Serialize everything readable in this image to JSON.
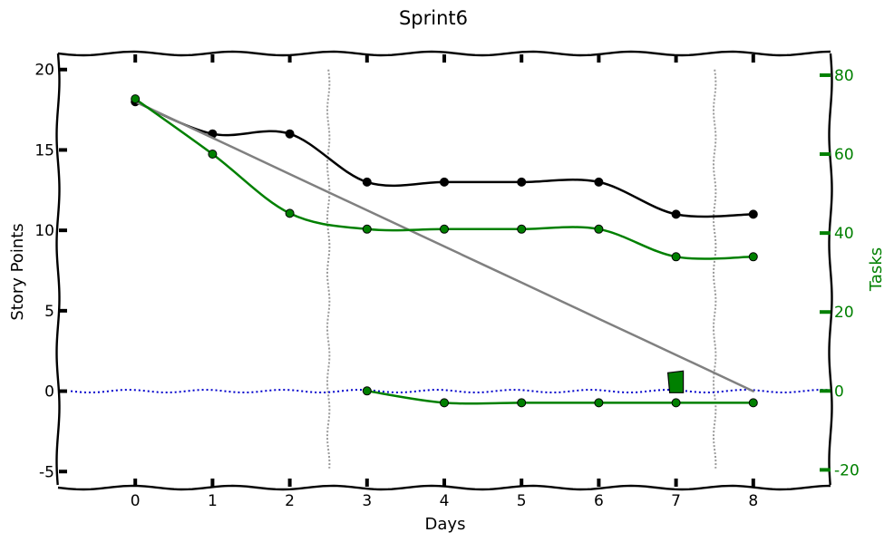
{
  "chart_data": {
    "type": "line",
    "title": "Sprint6",
    "xlabel": "Days",
    "ylabel": "Story Points",
    "y2label": "Tasks",
    "xlim": [
      -1,
      9
    ],
    "ylim": [
      -6,
      21
    ],
    "y2lim": [
      -24.5,
      85.5
    ],
    "x_ticks": [
      0,
      1,
      2,
      3,
      4,
      5,
      6,
      7,
      8
    ],
    "y_ticks": [
      -5,
      0,
      5,
      10,
      15,
      20
    ],
    "y_tick_labels": [
      "-5",
      "0",
      "5",
      "10",
      "15",
      "20"
    ],
    "y2_ticks": [
      -20,
      0,
      20,
      40,
      60,
      80
    ],
    "y2_tick_labels": [
      "-20",
      "0",
      "20",
      "40",
      "60",
      "80"
    ],
    "vlines": [
      2.5,
      7.5
    ],
    "grid": false,
    "colors": {
      "story_points": "#000000",
      "ideal": "#808080",
      "tasks": "#008000",
      "zero": "#0000cc",
      "vline": "#999999",
      "secondary_axis": "#008000"
    },
    "series": [
      {
        "key": "story_points",
        "axis": "left",
        "x": [
          0,
          1,
          2,
          3,
          4,
          5,
          6,
          7,
          8
        ],
        "values": [
          18,
          16,
          16,
          13,
          13,
          13,
          13,
          11,
          11
        ]
      },
      {
        "key": "ideal",
        "axis": "left",
        "x": [
          0,
          1,
          2,
          3,
          4,
          5,
          6,
          7,
          8
        ],
        "values": [
          18,
          15.75,
          13.5,
          11.25,
          9,
          6.75,
          4.5,
          2.25,
          0
        ]
      },
      {
        "key": "tasks",
        "axis": "right",
        "x": [
          0,
          1,
          2,
          3,
          4,
          5,
          6,
          7,
          8
        ],
        "values": [
          74,
          60,
          45,
          41,
          41,
          41,
          41,
          34,
          34
        ]
      },
      {
        "key": "tasks_negative",
        "axis": "right",
        "x": [
          3,
          4,
          5,
          6,
          7,
          8
        ],
        "values": [
          0,
          -3,
          -3,
          -3,
          -3,
          -3
        ]
      }
    ],
    "zero_line": 0,
    "flag_marker": {
      "x": 7,
      "y2": 0
    }
  }
}
